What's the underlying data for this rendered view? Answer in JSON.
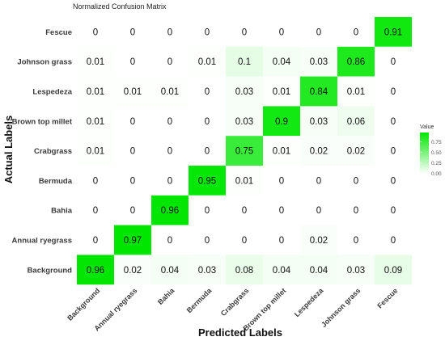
{
  "chart_data": {
    "type": "heatmap",
    "title": "Normalized Confusion Matrix",
    "xlabel": "Predicted Labels",
    "ylabel": "Actual Labels",
    "x_categories": [
      "Background",
      "Annual ryegrass",
      "Bahia",
      "Bermuda",
      "Crabgrass",
      "Brown top millet",
      "Lespedeza",
      "Johnson grass",
      "Fescue"
    ],
    "y_categories_top_to_bottom": [
      "Fescue",
      "Johnson grass",
      "Lespedeza",
      "Brown top millet",
      "Crabgrass",
      "Bermuda",
      "Bahia",
      "Annual ryegrass",
      "Background"
    ],
    "values": [
      [
        0,
        0,
        0,
        0,
        0,
        0,
        0,
        0,
        0.91
      ],
      [
        0.01,
        0,
        0,
        0.01,
        0.1,
        0.04,
        0.03,
        0.86,
        0
      ],
      [
        0.01,
        0.01,
        0.01,
        0,
        0.03,
        0.01,
        0.84,
        0.01,
        0
      ],
      [
        0.01,
        0,
        0,
        0,
        0.03,
        0.9,
        0.03,
        0.06,
        0
      ],
      [
        0.01,
        0,
        0,
        0,
        0.75,
        0.01,
        0.02,
        0.02,
        0
      ],
      [
        0,
        0,
        0,
        0.95,
        0.01,
        0,
        0,
        0,
        0
      ],
      [
        0,
        0,
        0.96,
        0,
        0,
        0,
        0,
        0,
        0
      ],
      [
        0,
        0.97,
        0,
        0,
        0,
        0,
        0.02,
        0,
        0
      ],
      [
        0.96,
        0.02,
        0.04,
        0.03,
        0.08,
        0.04,
        0.04,
        0.03,
        0.09
      ]
    ],
    "color_scale": {
      "low": "#ffffff",
      "high": "#00e600"
    },
    "legend": {
      "title": "Value",
      "ticks": [
        "0.75",
        "0.50",
        "0.25",
        "0.00"
      ],
      "tick_values": [
        0.75,
        0.5,
        0.25,
        0
      ],
      "range": [
        0,
        0.97
      ],
      "placement": "right"
    },
    "grid": false
  }
}
